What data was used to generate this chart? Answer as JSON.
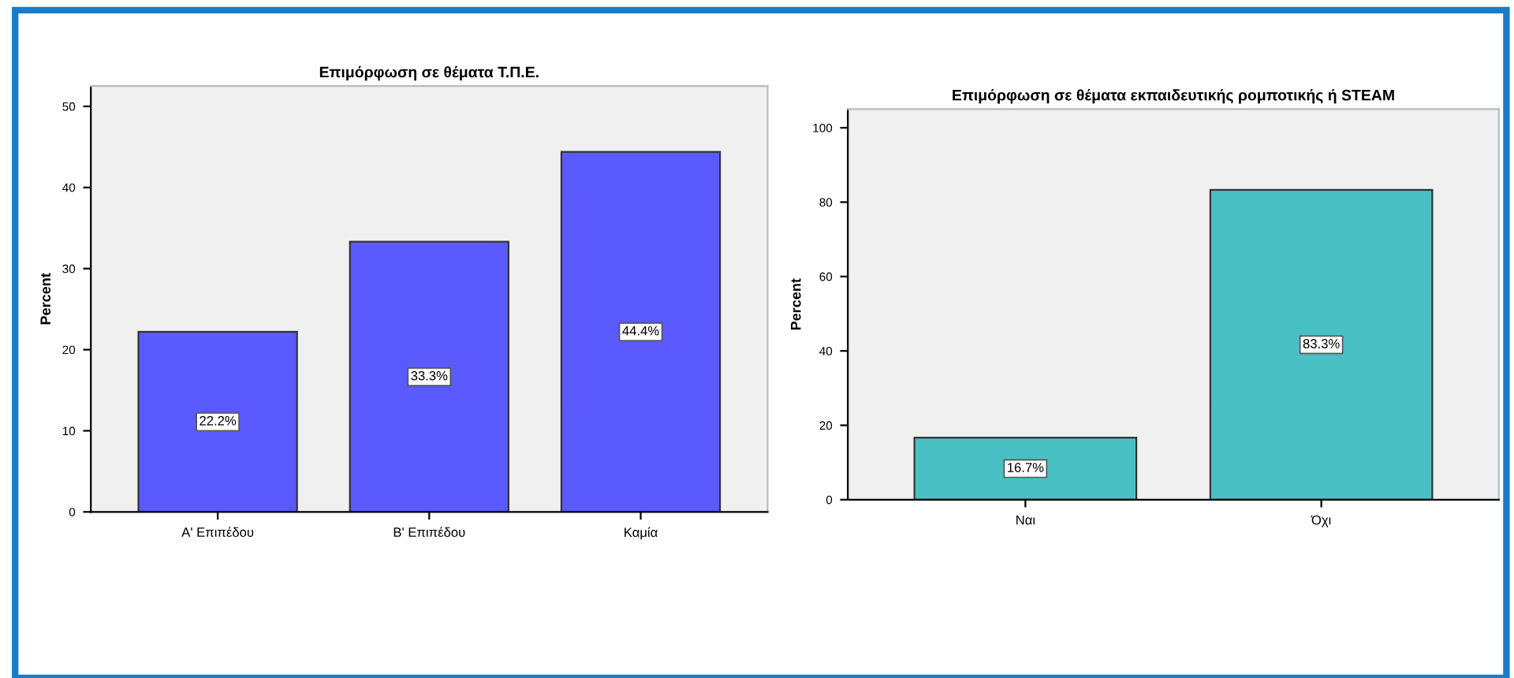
{
  "chart_data": [
    {
      "type": "bar",
      "title": "Επιμόρφωση σε θέματα Τ.Π.Ε.",
      "ylabel": "Percent",
      "categories": [
        "Α' Επιπέδου",
        "Β' Επιπέδου",
        "Καμία"
      ],
      "values": [
        22.2,
        33.3,
        44.4
      ],
      "value_labels": [
        "22.2%",
        "33.3%",
        "44.4%"
      ],
      "color": "#5a5aff",
      "ylim": [
        0,
        52.5
      ],
      "yticks": [
        0,
        10,
        20,
        30,
        40,
        50
      ],
      "grid": false,
      "legend": false
    },
    {
      "type": "bar",
      "title": "Επιμόρφωση σε θέματα εκπαιδευτικής ρομποτικής ή STEAM",
      "ylabel": "Percent",
      "categories": [
        "Ναι",
        "Όχι"
      ],
      "values": [
        16.7,
        83.3
      ],
      "value_labels": [
        "16.7%",
        "83.3%"
      ],
      "color": "#48c0c4",
      "ylim": [
        0,
        105
      ],
      "yticks": [
        0,
        20,
        40,
        60,
        80,
        100
      ],
      "grid": false,
      "legend": false
    }
  ]
}
